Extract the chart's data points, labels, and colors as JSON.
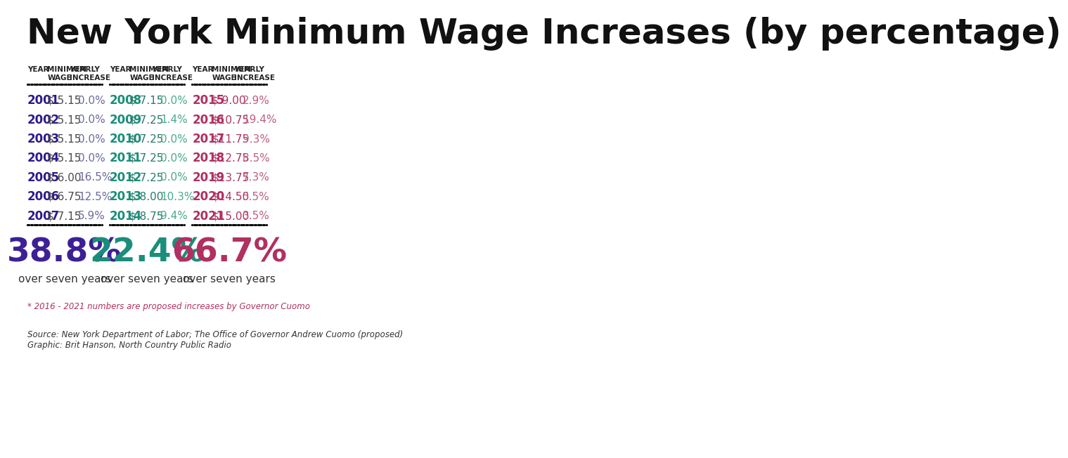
{
  "title": "New York Minimum Wage Increases (by percentage)",
  "title_fontsize": 36,
  "bg_color": "#ffffff",
  "col1": {
    "years": [
      "2001",
      "2002",
      "2003",
      "2004",
      "2005",
      "2006",
      "2007"
    ],
    "wages": [
      "$ 5.15",
      "$ 5.15",
      "$ 5.15",
      "$ 5.15",
      "$ 6.00",
      "$ 6.75",
      "$ 7.15"
    ],
    "increases": [
      "0.0%",
      "0.0%",
      "0.0%",
      "0.0%",
      "16.5%",
      "12.5%",
      "5.9%"
    ],
    "summary": "38.8%",
    "summary_label": "over seven years",
    "year_color": "#2e1a8e",
    "wage_color": "#4a4a4a",
    "increase_color": "#6b6b9e",
    "summary_color": "#3d2096"
  },
  "col2": {
    "years": [
      "2008",
      "2009",
      "2010",
      "2011",
      "2012",
      "2013",
      "2014"
    ],
    "wages": [
      "$ 7.15",
      "$ 7.25",
      "$ 7.25",
      "$ 7.25",
      "$ 7.25",
      "$ 8.00",
      "$ 8.75"
    ],
    "increases": [
      "0.0%",
      "1.4%",
      "0.0%",
      "0.0%",
      "0.0%",
      "10.3%",
      "9.4%"
    ],
    "summary": "22.4%",
    "summary_label": "over seven years",
    "year_color": "#1a8e7a",
    "wage_color": "#2a7a6a",
    "increase_color": "#4aaa8e",
    "summary_color": "#1a8e7a"
  },
  "col3": {
    "years": [
      "2015",
      "2016",
      "2017",
      "2018",
      "2019",
      "2020",
      "2021"
    ],
    "wages": [
      "$ 9.00",
      "$10.75",
      "$11.75",
      "$12.75",
      "$13.75",
      "$14.50",
      "$15.00"
    ],
    "increases": [
      "2.9%",
      "19.4%",
      "9.3%",
      "8.5%",
      "7.3%",
      "5.5%",
      "3.5%"
    ],
    "summary": "66.7%",
    "summary_label": "over seven years",
    "year_color": "#b03060",
    "wage_color": "#b03060",
    "increase_color": "#c06080",
    "summary_color": "#b03060"
  },
  "footnote1": "* 2016 - 2021 numbers are proposed increases by Governor Cuomo",
  "footnote2": "Source: New York Department of Labor; The Office of Governor Andrew Cuomo (proposed)\nGraphic: Brit Hanson, North Country Public Radio",
  "header_color": "#222222"
}
